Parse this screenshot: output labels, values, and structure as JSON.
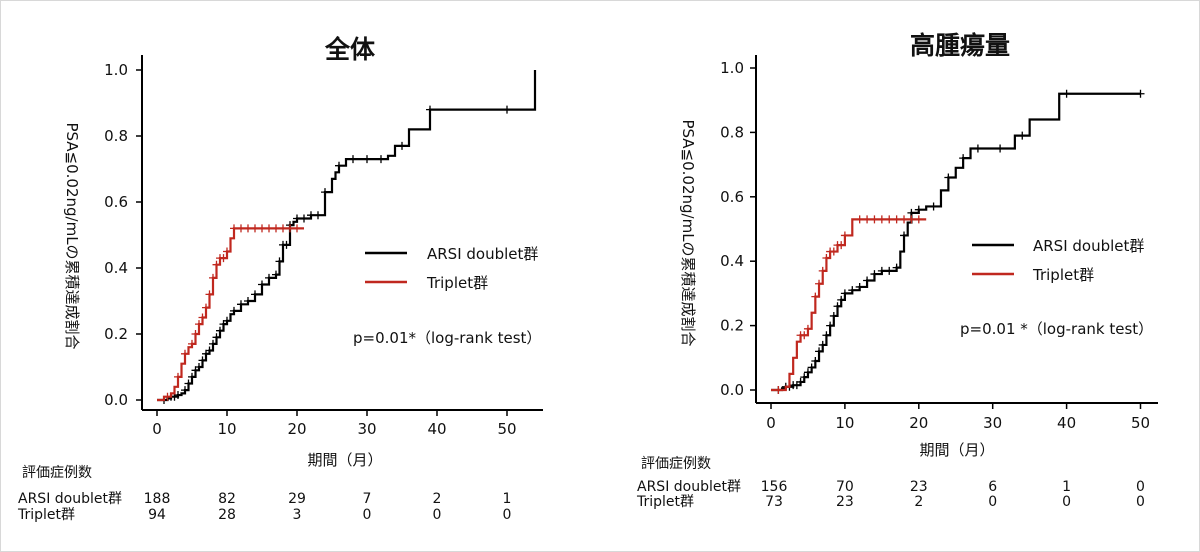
{
  "chart_data": [
    {
      "type": "line",
      "subtype": "kaplan-meier-cumulative-incidence",
      "title": "全体",
      "xlabel": "期間（月）",
      "ylabel": "PSA≦0.02ng/mLの累積達成割合",
      "xlim": [
        0,
        55
      ],
      "ylim": [
        0,
        1.0
      ],
      "xticks": [
        "0",
        "10",
        "20",
        "30",
        "40",
        "50"
      ],
      "yticks": [
        "0.0",
        "0.2",
        "0.4",
        "0.6",
        "0.8",
        "1.0"
      ],
      "grid": false,
      "legend_position": "right",
      "annotation": "p=0.01*（log-rank test）",
      "series": [
        {
          "name": "ARSI doublet群",
          "color": "#000000",
          "steps": [
            [
              0,
              0
            ],
            [
              1.5,
              0.005
            ],
            [
              2,
              0.01
            ],
            [
              3,
              0.015
            ],
            [
              3.5,
              0.02
            ],
            [
              4,
              0.03
            ],
            [
              4.5,
              0.05
            ],
            [
              5,
              0.07
            ],
            [
              5.5,
              0.09
            ],
            [
              6,
              0.1
            ],
            [
              6.5,
              0.12
            ],
            [
              7,
              0.14
            ],
            [
              7.5,
              0.15
            ],
            [
              8,
              0.17
            ],
            [
              8.5,
              0.19
            ],
            [
              9,
              0.21
            ],
            [
              9.5,
              0.23
            ],
            [
              10,
              0.24
            ],
            [
              10.5,
              0.26
            ],
            [
              11,
              0.27
            ],
            [
              12,
              0.29
            ],
            [
              13,
              0.3
            ],
            [
              14,
              0.32
            ],
            [
              15,
              0.35
            ],
            [
              16,
              0.37
            ],
            [
              17,
              0.38
            ],
            [
              17.5,
              0.42
            ],
            [
              18,
              0.47
            ],
            [
              19,
              0.53
            ],
            [
              19.5,
              0.54
            ],
            [
              20,
              0.55
            ],
            [
              21,
              0.55
            ],
            [
              22,
              0.56
            ],
            [
              24,
              0.63
            ],
            [
              25,
              0.67
            ],
            [
              25.5,
              0.69
            ],
            [
              26,
              0.71
            ],
            [
              27,
              0.73
            ],
            [
              33,
              0.74
            ],
            [
              34,
              0.77
            ],
            [
              36,
              0.82
            ],
            [
              39,
              0.88
            ],
            [
              53,
              0.88
            ],
            [
              54,
              1.0
            ]
          ],
          "end_x": 54,
          "censor_x": [
            1,
            2,
            2.5,
            3,
            4,
            4.5,
            5,
            5.5,
            6,
            6.5,
            7,
            7.5,
            8,
            8.5,
            9,
            9.5,
            10,
            11,
            12,
            13,
            14,
            15,
            16,
            17,
            17.5,
            18,
            18.5,
            19,
            20,
            21,
            22,
            23,
            24,
            26,
            28,
            30,
            32,
            35,
            39,
            50
          ]
        },
        {
          "name": "Triplet群",
          "color": "#c0281f",
          "steps": [
            [
              0,
              0
            ],
            [
              1,
              0.01
            ],
            [
              2,
              0.02
            ],
            [
              2.5,
              0.04
            ],
            [
              3,
              0.07
            ],
            [
              3.5,
              0.11
            ],
            [
              4,
              0.14
            ],
            [
              4.5,
              0.16
            ],
            [
              5,
              0.17
            ],
            [
              5.5,
              0.2
            ],
            [
              6,
              0.23
            ],
            [
              6.5,
              0.25
            ],
            [
              7,
              0.28
            ],
            [
              7.5,
              0.32
            ],
            [
              8,
              0.37
            ],
            [
              8.5,
              0.41
            ],
            [
              9,
              0.43
            ],
            [
              10,
              0.45
            ],
            [
              10.5,
              0.49
            ],
            [
              11,
              0.52
            ],
            [
              21,
              0.52
            ]
          ],
          "end_x": 21,
          "censor_x": [
            1.5,
            3,
            4,
            5,
            5.5,
            6,
            6.5,
            7,
            7.5,
            8,
            8.5,
            9,
            9.5,
            10,
            11,
            12,
            13,
            14,
            15,
            16,
            17,
            18,
            19,
            20
          ]
        }
      ],
      "risk_table": {
        "header": "評価症例数",
        "timepoints": [
          0,
          10,
          20,
          30,
          40,
          50
        ],
        "rows": [
          {
            "label": "ARSI doublet群",
            "counts": [
              "188",
              "82",
              "29",
              "7",
              "2",
              "1"
            ]
          },
          {
            "label": "Triplet群",
            "counts": [
              "94",
              "28",
              "3",
              "0",
              "0",
              "0"
            ]
          }
        ]
      }
    },
    {
      "type": "line",
      "subtype": "kaplan-meier-cumulative-incidence",
      "title": "高腫瘍量",
      "xlabel": "期間（月）",
      "ylabel": "PSA≦0.02ng/mLの累積達成割合",
      "xlim": [
        0,
        52
      ],
      "ylim": [
        0,
        1.0
      ],
      "xticks": [
        "0",
        "10",
        "20",
        "30",
        "40",
        "50"
      ],
      "yticks": [
        "0.0",
        "0.2",
        "0.4",
        "0.6",
        "0.8",
        "1.0"
      ],
      "grid": false,
      "legend_position": "right",
      "annotation": "p=0.01 *（log-rank test）",
      "series": [
        {
          "name": "ARSI doublet群",
          "color": "#000000",
          "steps": [
            [
              0,
              0
            ],
            [
              1.5,
              0.005
            ],
            [
              2,
              0.01
            ],
            [
              3,
              0.015
            ],
            [
              4,
              0.025
            ],
            [
              4.5,
              0.04
            ],
            [
              5,
              0.055
            ],
            [
              5.5,
              0.07
            ],
            [
              6,
              0.09
            ],
            [
              6.5,
              0.12
            ],
            [
              7,
              0.14
            ],
            [
              7.5,
              0.17
            ],
            [
              8,
              0.2
            ],
            [
              8.5,
              0.23
            ],
            [
              9,
              0.26
            ],
            [
              9.5,
              0.28
            ],
            [
              10,
              0.3
            ],
            [
              11,
              0.31
            ],
            [
              12,
              0.32
            ],
            [
              13,
              0.34
            ],
            [
              14,
              0.36
            ],
            [
              15,
              0.37
            ],
            [
              17,
              0.38
            ],
            [
              17.5,
              0.43
            ],
            [
              18,
              0.48
            ],
            [
              18.5,
              0.52
            ],
            [
              19,
              0.55
            ],
            [
              20,
              0.56
            ],
            [
              21,
              0.57
            ],
            [
              23,
              0.62
            ],
            [
              24,
              0.66
            ],
            [
              25,
              0.69
            ],
            [
              26,
              0.72
            ],
            [
              27,
              0.75
            ],
            [
              33,
              0.79
            ],
            [
              35,
              0.84
            ],
            [
              39,
              0.92
            ],
            [
              50,
              0.92
            ]
          ],
          "end_x": 50,
          "censor_x": [
            1,
            2,
            2.5,
            3,
            3.5,
            4,
            4.5,
            5,
            5.5,
            6,
            6.5,
            7,
            7.5,
            8,
            8.5,
            9,
            9.5,
            10,
            11,
            12,
            13,
            14,
            15,
            16,
            17,
            18,
            19,
            20,
            22,
            24,
            26,
            28,
            31,
            34,
            40,
            50
          ]
        },
        {
          "name": "Triplet群",
          "color": "#c0281f",
          "steps": [
            [
              0,
              0
            ],
            [
              2,
              0.01
            ],
            [
              2.5,
              0.05
            ],
            [
              3,
              0.1
            ],
            [
              3.5,
              0.15
            ],
            [
              4,
              0.17
            ],
            [
              5,
              0.19
            ],
            [
              5.5,
              0.24
            ],
            [
              6,
              0.29
            ],
            [
              6.5,
              0.33
            ],
            [
              7,
              0.37
            ],
            [
              7.5,
              0.41
            ],
            [
              8,
              0.43
            ],
            [
              9,
              0.45
            ],
            [
              10,
              0.48
            ],
            [
              11,
              0.53
            ],
            [
              21,
              0.53
            ]
          ],
          "end_x": 21,
          "censor_x": [
            1,
            4,
            4.5,
            5,
            6,
            6.5,
            7,
            7.5,
            8,
            8.5,
            9,
            9.5,
            10,
            12,
            13,
            14,
            15,
            16,
            17,
            18,
            19,
            20
          ]
        }
      ],
      "risk_table": {
        "header": "評価症例数",
        "timepoints": [
          0,
          10,
          20,
          30,
          40,
          50
        ],
        "rows": [
          {
            "label": "ARSI doublet群",
            "counts": [
              "156",
              "70",
              "23",
              "6",
              "1",
              "0"
            ]
          },
          {
            "label": "Triplet群",
            "counts": [
              "73",
              "23",
              "2",
              "0",
              "0",
              "0"
            ]
          }
        ]
      }
    }
  ]
}
